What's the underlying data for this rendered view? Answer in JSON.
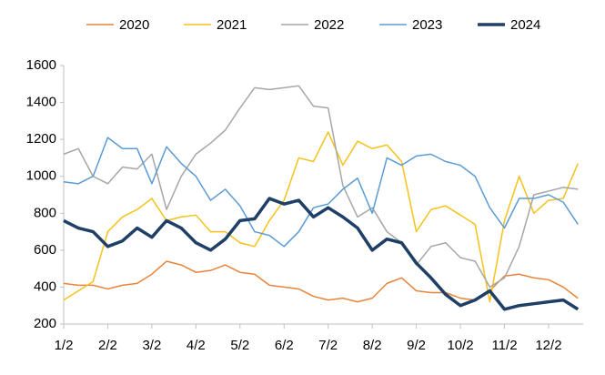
{
  "chart_data": {
    "type": "line",
    "categories": [
      "1/2",
      null,
      null,
      "2/2",
      null,
      null,
      "3/2",
      null,
      null,
      "4/2",
      null,
      null,
      "5/2",
      null,
      null,
      "6/2",
      null,
      null,
      "7/2",
      null,
      null,
      "8/2",
      null,
      null,
      "9/2",
      null,
      null,
      "10/2",
      null,
      null,
      "11/2",
      null,
      null,
      "12/2",
      null,
      null
    ],
    "series": [
      {
        "name": "2020",
        "color": "#e8843a",
        "width": 1.5,
        "values": [
          420,
          410,
          410,
          390,
          410,
          420,
          470,
          540,
          520,
          480,
          490,
          520,
          480,
          470,
          410,
          400,
          390,
          350,
          330,
          340,
          320,
          340,
          420,
          450,
          380,
          370,
          370,
          340,
          330,
          380,
          460,
          470,
          450,
          440,
          400,
          340
        ]
      },
      {
        "name": "2021",
        "color": "#f5c21b",
        "width": 1.5,
        "values": [
          330,
          380,
          430,
          700,
          780,
          820,
          880,
          760,
          780,
          790,
          700,
          700,
          640,
          620,
          760,
          870,
          1100,
          1080,
          1240,
          1060,
          1190,
          1150,
          1170,
          1080,
          700,
          820,
          840,
          790,
          740,
          320,
          760,
          1000,
          800,
          870,
          880,
          1070
        ]
      },
      {
        "name": "2022",
        "color": "#a6a6a6",
        "width": 1.5,
        "values": [
          1120,
          1150,
          1000,
          960,
          1050,
          1040,
          1120,
          820,
          1000,
          1120,
          1180,
          1250,
          1370,
          1480,
          1470,
          1480,
          1490,
          1380,
          1370,
          950,
          780,
          830,
          700,
          640,
          520,
          620,
          640,
          560,
          540,
          400,
          450,
          620,
          900,
          920,
          940,
          930
        ]
      },
      {
        "name": "2023",
        "color": "#5b9bd5",
        "width": 1.5,
        "values": [
          970,
          960,
          1000,
          1210,
          1150,
          1150,
          960,
          1160,
          1070,
          1000,
          870,
          930,
          840,
          700,
          680,
          620,
          700,
          830,
          850,
          930,
          990,
          800,
          1100,
          1060,
          1110,
          1120,
          1080,
          1060,
          1000,
          830,
          720,
          880,
          880,
          900,
          860,
          740
        ]
      },
      {
        "name": "2024",
        "color": "#1f3f66",
        "width": 3.5,
        "values": [
          760,
          720,
          700,
          620,
          650,
          720,
          670,
          760,
          720,
          640,
          600,
          660,
          760,
          770,
          880,
          850,
          870,
          780,
          830,
          780,
          720,
          600,
          660,
          640,
          530,
          450,
          360,
          300,
          330,
          380,
          280,
          300,
          310,
          320,
          330,
          280
        ]
      }
    ],
    "ylim": [
      200,
      1600
    ],
    "yticks": [
      200,
      400,
      600,
      800,
      1000,
      1200,
      1400,
      1600
    ],
    "legend": "top"
  }
}
